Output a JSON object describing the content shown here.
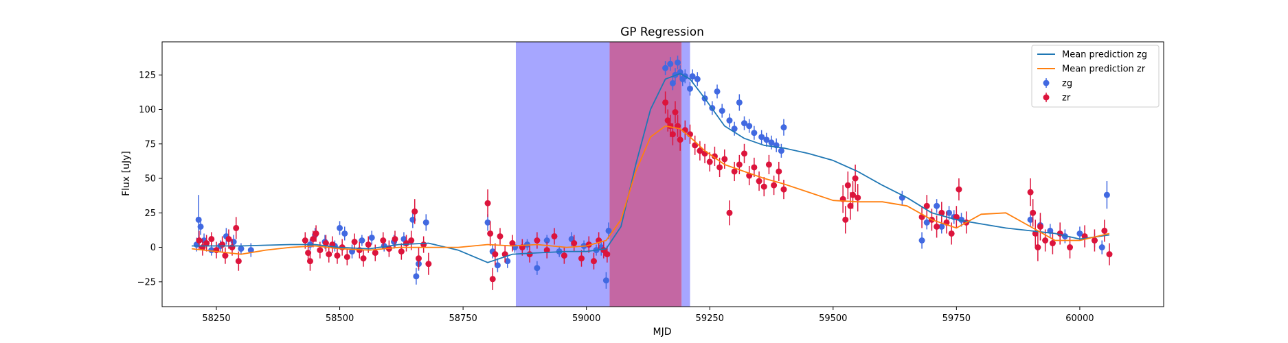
{
  "chart_data": {
    "type": "scatter",
    "title": "GP Regression",
    "xlabel": "MJD",
    "ylabel": "Flux [uJy]",
    "xlim": [
      58140,
      60170
    ],
    "ylim": [
      -43,
      149
    ],
    "xticks": [
      58250,
      58500,
      58750,
      59000,
      59250,
      59500,
      59750,
      60000
    ],
    "yticks": [
      -25,
      0,
      25,
      50,
      75,
      100,
      125
    ],
    "grid": false,
    "legend_position": "top-right",
    "colors": {
      "zg_line": "#1f77b4",
      "zr_line": "#ff7f0e",
      "zg_points": "#4169e1",
      "zr_points": "#dc143c",
      "band_blue": "#a6a6ff",
      "band_red": "#c467a3"
    },
    "shaded_regions": [
      {
        "x0": 58857,
        "x1": 59047,
        "color": "#a6a6ff"
      },
      {
        "x0": 59047,
        "x1": 59193,
        "color": "#c467a3"
      },
      {
        "x0": 59193,
        "x1": 59210,
        "color": "#a6a6ff"
      }
    ],
    "legend": [
      "Mean prediction zg",
      "Mean prediction zr",
      "zg",
      "zr"
    ],
    "series": [
      {
        "name": "Mean prediction zg",
        "kind": "line",
        "x": [
          58200,
          58300,
          58400,
          58450,
          58500,
          58560,
          58620,
          58680,
          58740,
          58800,
          58850,
          58900,
          58960,
          59000,
          59040,
          59070,
          59100,
          59130,
          59160,
          59190,
          59210,
          59240,
          59280,
          59320,
          59360,
          59400,
          59450,
          59500,
          59550,
          59600,
          59650,
          59700,
          59750,
          59800,
          59850,
          59900,
          59950,
          60000,
          60060
        ],
        "y": [
          1,
          1,
          2,
          2,
          0,
          -1,
          2,
          3,
          -2,
          -11,
          -5,
          -4,
          -3,
          -3,
          -1,
          15,
          60,
          100,
          122,
          126,
          122,
          108,
          88,
          79,
          74,
          72,
          68,
          63,
          55,
          45,
          36,
          25,
          20,
          17,
          14,
          12,
          10,
          6,
          9
        ]
      },
      {
        "name": "Mean prediction zr",
        "kind": "line",
        "x": [
          58200,
          58250,
          58300,
          58350,
          58400,
          58450,
          58500,
          58560,
          58620,
          58680,
          58740,
          58800,
          58850,
          58900,
          58960,
          59000,
          59040,
          59070,
          59100,
          59130,
          59160,
          59190,
          59210,
          59240,
          59280,
          59320,
          59360,
          59400,
          59450,
          59500,
          59550,
          59600,
          59650,
          59700,
          59750,
          59800,
          59850,
          59900,
          59950,
          60000,
          60060
        ],
        "y": [
          -1,
          -3,
          -5,
          -2,
          0,
          1,
          -1,
          -2,
          0,
          0,
          0,
          2,
          1,
          2,
          0,
          1,
          5,
          20,
          55,
          80,
          88,
          86,
          80,
          70,
          60,
          55,
          50,
          46,
          40,
          34,
          33,
          33,
          30,
          20,
          14,
          24,
          25,
          15,
          5,
          5,
          10
        ]
      },
      {
        "name": "zg",
        "kind": "errorbar",
        "points": [
          [
            58210,
            2,
            5
          ],
          [
            58214,
            20,
            18
          ],
          [
            58218,
            15,
            6
          ],
          [
            58225,
            5,
            5
          ],
          [
            58240,
            -2,
            4
          ],
          [
            58258,
            1,
            4
          ],
          [
            58270,
            8,
            6
          ],
          [
            58285,
            4,
            5
          ],
          [
            58300,
            -1,
            4
          ],
          [
            58320,
            -2,
            5
          ],
          [
            58440,
            2,
            4
          ],
          [
            58450,
            9,
            5
          ],
          [
            58470,
            4,
            5
          ],
          [
            58490,
            1,
            4
          ],
          [
            58500,
            14,
            5
          ],
          [
            58510,
            10,
            5
          ],
          [
            58525,
            -3,
            5
          ],
          [
            58545,
            5,
            4
          ],
          [
            58565,
            7,
            5
          ],
          [
            58590,
            1,
            4
          ],
          [
            58610,
            4,
            5
          ],
          [
            58630,
            6,
            5
          ],
          [
            58648,
            20,
            6
          ],
          [
            58655,
            -21,
            6
          ],
          [
            58660,
            -12,
            5
          ],
          [
            58675,
            18,
            6
          ],
          [
            58800,
            18,
            6
          ],
          [
            58810,
            -3,
            5
          ],
          [
            58820,
            -13,
            5
          ],
          [
            58840,
            -10,
            5
          ],
          [
            58855,
            0,
            4
          ],
          [
            58880,
            2,
            4
          ],
          [
            58900,
            -15,
            5
          ],
          [
            58920,
            5,
            4
          ],
          [
            58945,
            -3,
            4
          ],
          [
            58970,
            6,
            5
          ],
          [
            58995,
            1,
            4
          ],
          [
            59020,
            -2,
            4
          ],
          [
            59030,
            0,
            6
          ],
          [
            59040,
            -24,
            6
          ],
          [
            59045,
            12,
            6
          ],
          [
            59160,
            130,
            5
          ],
          [
            59170,
            133,
            5
          ],
          [
            59175,
            119,
            5
          ],
          [
            59180,
            125,
            5
          ],
          [
            59185,
            134,
            5
          ],
          [
            59190,
            127,
            5
          ],
          [
            59195,
            122,
            5
          ],
          [
            59200,
            124,
            5
          ],
          [
            59210,
            115,
            5
          ],
          [
            59215,
            124,
            5
          ],
          [
            59225,
            122,
            5
          ],
          [
            59240,
            108,
            5
          ],
          [
            59255,
            101,
            5
          ],
          [
            59265,
            113,
            5
          ],
          [
            59275,
            99,
            5
          ],
          [
            59290,
            92,
            5
          ],
          [
            59300,
            86,
            5
          ],
          [
            59310,
            105,
            6
          ],
          [
            59320,
            90,
            5
          ],
          [
            59330,
            88,
            5
          ],
          [
            59340,
            83,
            5
          ],
          [
            59355,
            80,
            5
          ],
          [
            59365,
            78,
            5
          ],
          [
            59375,
            76,
            5
          ],
          [
            59385,
            74,
            5
          ],
          [
            59395,
            70,
            5
          ],
          [
            59400,
            87,
            6
          ],
          [
            59640,
            36,
            5
          ],
          [
            59680,
            5,
            6
          ],
          [
            59690,
            18,
            5
          ],
          [
            59710,
            30,
            5
          ],
          [
            59720,
            15,
            5
          ],
          [
            59735,
            25,
            5
          ],
          [
            59745,
            22,
            5
          ],
          [
            59760,
            20,
            5
          ],
          [
            59900,
            20,
            5
          ],
          [
            59920,
            16,
            5
          ],
          [
            59940,
            12,
            5
          ],
          [
            59970,
            8,
            5
          ],
          [
            60000,
            10,
            5
          ],
          [
            60030,
            5,
            5
          ],
          [
            60045,
            0,
            5
          ],
          [
            60055,
            38,
            10
          ]
        ]
      },
      {
        "name": "zr",
        "kind": "errorbar",
        "points": [
          [
            58215,
            5,
            7
          ],
          [
            58222,
            0,
            6
          ],
          [
            58230,
            3,
            6
          ],
          [
            58240,
            6,
            5
          ],
          [
            58250,
            -2,
            6
          ],
          [
            58262,
            2,
            6
          ],
          [
            58268,
            -6,
            6
          ],
          [
            58275,
            6,
            7
          ],
          [
            58282,
            0,
            6
          ],
          [
            58290,
            14,
            8
          ],
          [
            58295,
            -10,
            7
          ],
          [
            58430,
            5,
            6
          ],
          [
            58436,
            -4,
            6
          ],
          [
            58440,
            -10,
            7
          ],
          [
            58446,
            6,
            6
          ],
          [
            58452,
            10,
            6
          ],
          [
            58460,
            -2,
            6
          ],
          [
            58472,
            3,
            6
          ],
          [
            58478,
            -5,
            6
          ],
          [
            58485,
            2,
            6
          ],
          [
            58495,
            -6,
            6
          ],
          [
            58505,
            0,
            6
          ],
          [
            58515,
            -7,
            6
          ],
          [
            58530,
            4,
            6
          ],
          [
            58540,
            -2,
            6
          ],
          [
            58548,
            -8,
            6
          ],
          [
            58558,
            2,
            6
          ],
          [
            58572,
            -4,
            6
          ],
          [
            58588,
            5,
            6
          ],
          [
            58600,
            -1,
            6
          ],
          [
            58612,
            6,
            6
          ],
          [
            58625,
            -3,
            6
          ],
          [
            58635,
            3,
            6
          ],
          [
            58645,
            5,
            7
          ],
          [
            58652,
            26,
            9
          ],
          [
            58660,
            -8,
            8
          ],
          [
            58670,
            2,
            6
          ],
          [
            58680,
            -12,
            8
          ],
          [
            58800,
            32,
            10
          ],
          [
            58805,
            10,
            9
          ],
          [
            58810,
            -23,
            8
          ],
          [
            58815,
            -5,
            8
          ],
          [
            58825,
            8,
            6
          ],
          [
            58835,
            -5,
            6
          ],
          [
            58850,
            3,
            6
          ],
          [
            58870,
            0,
            6
          ],
          [
            58885,
            -5,
            6
          ],
          [
            58900,
            5,
            6
          ],
          [
            58920,
            -2,
            6
          ],
          [
            58935,
            8,
            6
          ],
          [
            58955,
            -6,
            6
          ],
          [
            58975,
            3,
            6
          ],
          [
            58990,
            -8,
            6
          ],
          [
            59005,
            2,
            6
          ],
          [
            59015,
            -10,
            6
          ],
          [
            59025,
            5,
            6
          ],
          [
            59035,
            -2,
            6
          ],
          [
            59042,
            -5,
            6
          ],
          [
            59160,
            105,
            8
          ],
          [
            59165,
            92,
            8
          ],
          [
            59170,
            88,
            8
          ],
          [
            59175,
            82,
            8
          ],
          [
            59180,
            98,
            8
          ],
          [
            59185,
            88,
            8
          ],
          [
            59190,
            78,
            8
          ],
          [
            59200,
            85,
            7
          ],
          [
            59210,
            82,
            7
          ],
          [
            59220,
            74,
            7
          ],
          [
            59230,
            70,
            7
          ],
          [
            59240,
            68,
            7
          ],
          [
            59250,
            62,
            7
          ],
          [
            59260,
            66,
            7
          ],
          [
            59270,
            58,
            7
          ],
          [
            59280,
            64,
            7
          ],
          [
            59290,
            25,
            9
          ],
          [
            59300,
            55,
            7
          ],
          [
            59310,
            60,
            7
          ],
          [
            59320,
            68,
            7
          ],
          [
            59330,
            52,
            7
          ],
          [
            59340,
            58,
            7
          ],
          [
            59350,
            48,
            7
          ],
          [
            59360,
            44,
            7
          ],
          [
            59370,
            60,
            7
          ],
          [
            59380,
            45,
            7
          ],
          [
            59390,
            55,
            7
          ],
          [
            59400,
            42,
            7
          ],
          [
            59520,
            35,
            10
          ],
          [
            59525,
            20,
            10
          ],
          [
            59530,
            45,
            10
          ],
          [
            59535,
            30,
            10
          ],
          [
            59540,
            38,
            10
          ],
          [
            59545,
            50,
            10
          ],
          [
            59550,
            36,
            10
          ],
          [
            59680,
            22,
            8
          ],
          [
            59690,
            30,
            8
          ],
          [
            59700,
            20,
            8
          ],
          [
            59710,
            15,
            8
          ],
          [
            59720,
            25,
            8
          ],
          [
            59730,
            18,
            8
          ],
          [
            59740,
            10,
            8
          ],
          [
            59750,
            22,
            8
          ],
          [
            59755,
            42,
            8
          ],
          [
            59770,
            18,
            8
          ],
          [
            59900,
            40,
            10
          ],
          [
            59905,
            25,
            10
          ],
          [
            59910,
            10,
            10
          ],
          [
            59915,
            0,
            10
          ],
          [
            59920,
            15,
            10
          ],
          [
            59930,
            5,
            8
          ],
          [
            59945,
            3,
            8
          ],
          [
            59960,
            10,
            8
          ],
          [
            59980,
            0,
            8
          ],
          [
            60010,
            8,
            8
          ],
          [
            60030,
            5,
            8
          ],
          [
            60050,
            12,
            8
          ],
          [
            60060,
            -5,
            8
          ]
        ]
      }
    ]
  }
}
